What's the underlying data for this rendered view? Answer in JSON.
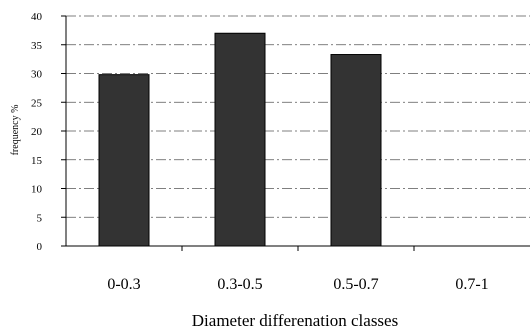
{
  "chart_data": {
    "type": "bar",
    "title": "",
    "xlabel": "Diameter differenation classes",
    "ylabel": "frequency %",
    "categories": [
      "0-0.3",
      "0.3-0.5",
      "0.5-0.7",
      "0.7-1"
    ],
    "values": [
      29.8,
      37.0,
      33.3,
      0
    ],
    "ylim": [
      0,
      40
    ],
    "yticks": [
      "0",
      "5",
      "10",
      "15",
      "20",
      "25",
      "30",
      "35",
      "40"
    ],
    "grid": "horizontal dash-dot",
    "bar_color": "#333333",
    "legend": "none"
  }
}
